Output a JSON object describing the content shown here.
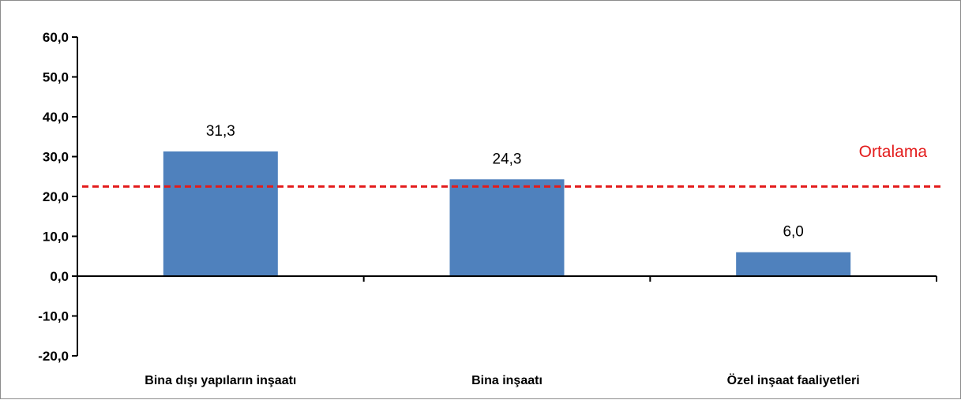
{
  "chart_data": {
    "type": "bar",
    "title": "",
    "xlabel": "",
    "ylabel": "",
    "categories": [
      "Bina dışı yapıların inşaatı",
      "Bina inşaatı",
      "Özel inşaat faaliyetleri"
    ],
    "values": [
      31.3,
      24.3,
      6.0
    ],
    "value_labels": [
      "31,3",
      "24,3",
      "6,0"
    ],
    "ylim": [
      -20,
      60
    ],
    "ytick_values": [
      60,
      50,
      40,
      30,
      20,
      10,
      0,
      -10,
      -20
    ],
    "ytick_labels": [
      "60,0",
      "50,0",
      "40,0",
      "30,0",
      "20,0",
      "10,0",
      "0,0",
      "-10,0",
      "-20,0"
    ],
    "grid": false,
    "legend": "none",
    "reference_line": {
      "label": "Ortalama",
      "value": 22.5,
      "style": "dashed",
      "color": "#e31b1b"
    },
    "bar_color": "#4f81bd"
  }
}
